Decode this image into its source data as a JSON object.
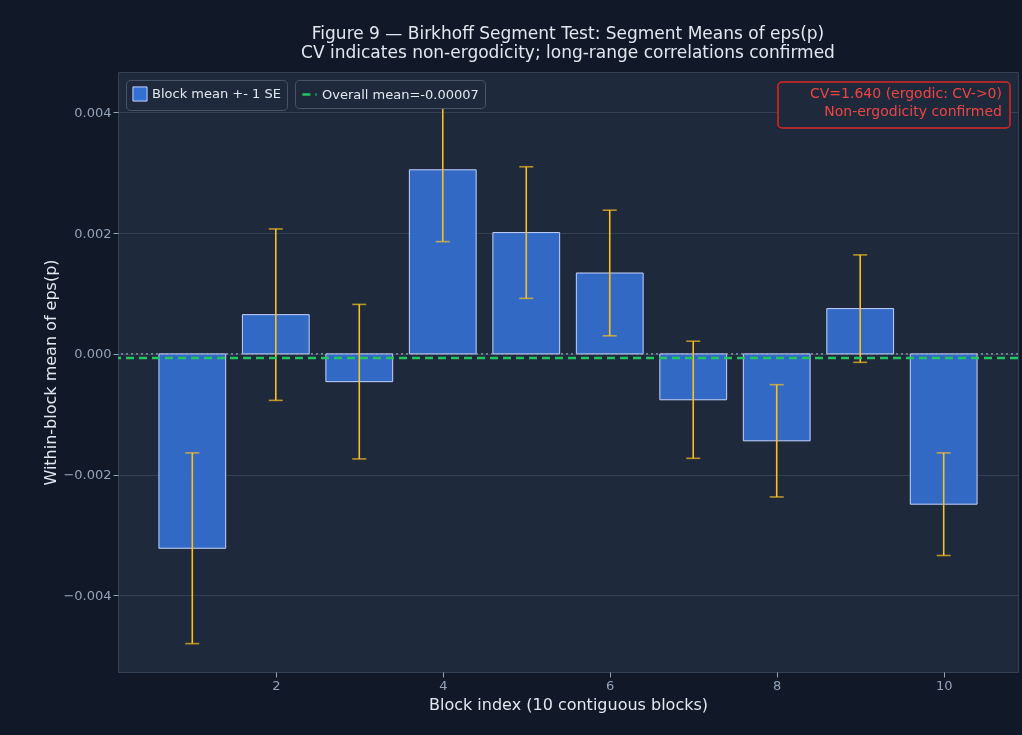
{
  "chart_data": {
    "type": "bar",
    "title": "Figure 9 — Birkhoff Segment Test: Segment Means of eps(p)",
    "subtitle": "CV indicates non-ergodicity; long-range correlations confirmed",
    "xlabel": "Block index (10 contiguous blocks)",
    "ylabel": "Within-block mean of eps(p)",
    "x": [
      1,
      2,
      3,
      4,
      5,
      6,
      7,
      8,
      9,
      10
    ],
    "series": [
      {
        "name": "Block mean +- 1 SE",
        "color": "#3370d4",
        "values": [
          -0.00322,
          0.00065,
          -0.00046,
          0.00305,
          0.00201,
          0.00134,
          -0.00076,
          -0.00144,
          0.00075,
          -0.00249
        ],
        "errors": [
          0.00158,
          0.00142,
          0.00128,
          0.00119,
          0.00109,
          0.00104,
          0.00097,
          0.00093,
          0.00089,
          0.00085
        ]
      }
    ],
    "ref_lines": [
      {
        "axis": "y",
        "value": 0,
        "color": "#94a3b8",
        "line_style": "dotted"
      },
      {
        "axis": "y",
        "value": -7e-05,
        "label": "Overall mean=-0.00007",
        "color": "#22c55e",
        "line_style": "dashed"
      }
    ],
    "annotations": [
      "CV=1.640 (ergodic: CV->0)",
      "Non-ergodicity confirmed"
    ],
    "xlim": [
      0.11,
      10.89
    ],
    "xticks": [
      2,
      4,
      6,
      8,
      10
    ],
    "ylim": [
      -0.00527,
      0.00467
    ],
    "yticks": [
      -0.004,
      -0.002,
      {
        "value": 0,
        "label": "0.000"
      },
      0.002,
      0.004
    ],
    "grid": "y",
    "legend": "top left"
  }
}
